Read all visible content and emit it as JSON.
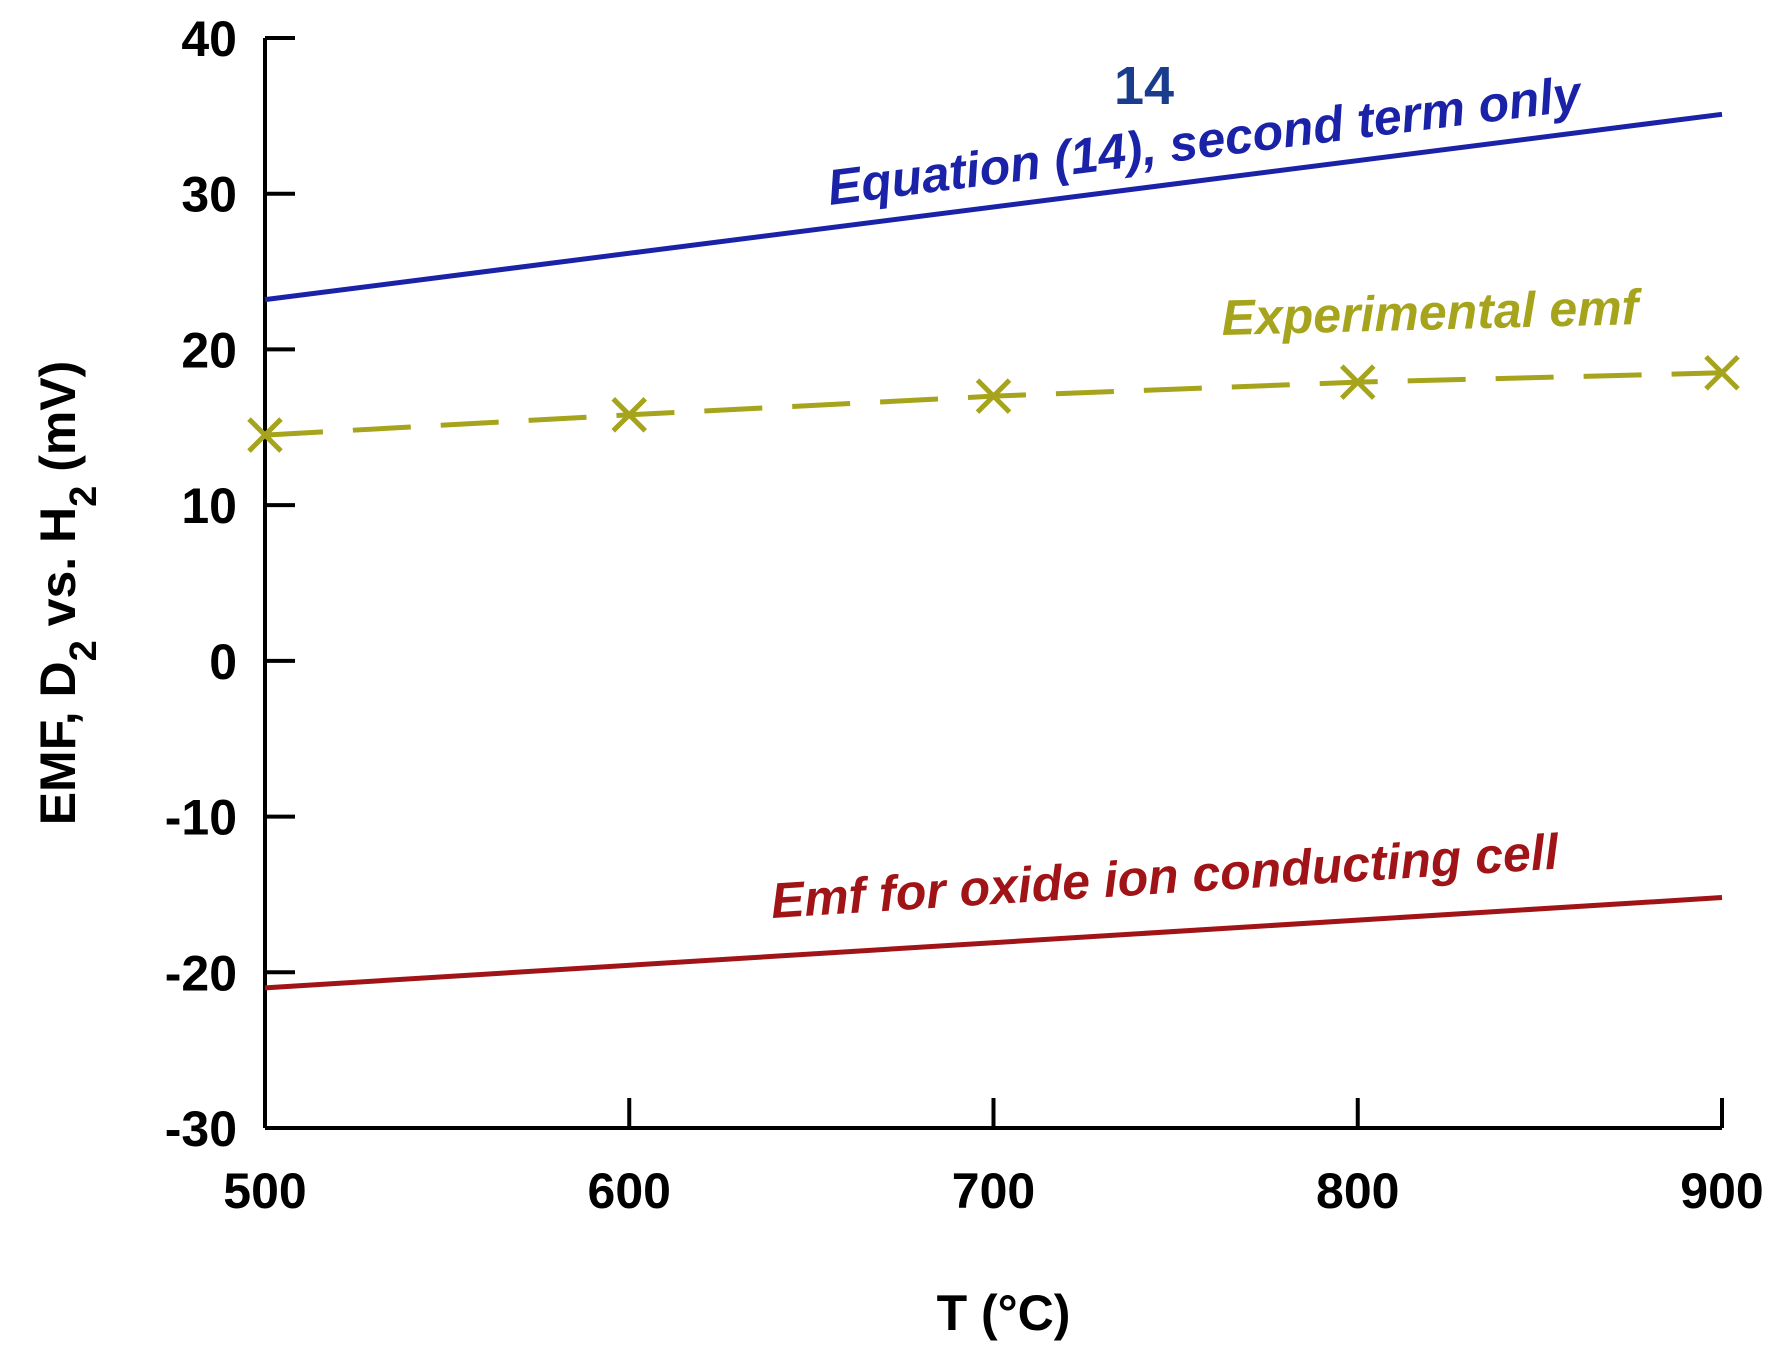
{
  "chart_data": {
    "type": "line",
    "xlabel": "T (°C)",
    "ylabel": {
      "prefix": "EMF, D",
      "sub1": "2",
      "middle": " vs. H",
      "sub2": "2",
      "suffix": " (mV)"
    },
    "xlim": [
      500,
      900
    ],
    "ylim": [
      -30,
      40
    ],
    "xticks": [
      500,
      600,
      700,
      800,
      900
    ],
    "yticks": [
      -30,
      -20,
      -10,
      0,
      10,
      20,
      30,
      40
    ],
    "grid": false,
    "series": [
      {
        "name": "Equation (14), second term only",
        "color": "#1a22a8",
        "style": "solid",
        "marker": "none",
        "x": [
          500,
          900
        ],
        "y": [
          23.2,
          35.1
        ]
      },
      {
        "name": "Experimental emf",
        "color": "#a6a41c",
        "style": "dashed",
        "marker": "x",
        "x": [
          500,
          600,
          700,
          800,
          900
        ],
        "y": [
          14.5,
          15.8,
          17.0,
          17.9,
          18.5
        ]
      },
      {
        "name": "Emf for oxide ion conducting cell",
        "color": "#a01418",
        "style": "solid",
        "marker": "none",
        "x": [
          500,
          900
        ],
        "y": [
          -21.0,
          -15.2
        ]
      }
    ],
    "annotations": [
      {
        "text": "14",
        "color": "#1a3c8c"
      }
    ]
  }
}
